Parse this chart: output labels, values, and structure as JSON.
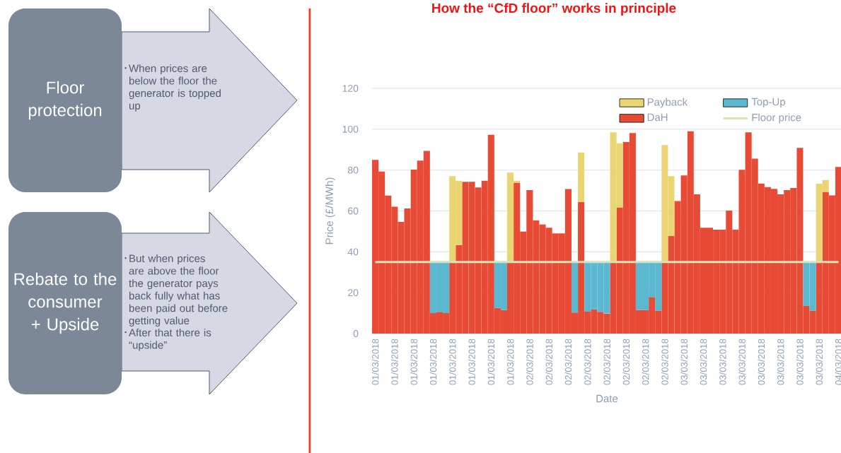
{
  "chart_data": [
    {
      "type": "other",
      "annotations": [
        "Floor protection",
        "When prices are below the floor the generator is topped up",
        "Rebate to the consumer + Upside",
        "But when prices are above the floor the generator pays back fully what has been paid out before getting value",
        "After that there is “upside”"
      ]
    },
    {
      "type": "bar",
      "stacked": true,
      "title": "How the “CfD floor” works in principle",
      "xlabel": "Date",
      "ylabel": "Price (£/MWh)",
      "categories": [
        "01/03/2018",
        null,
        null,
        "01/03/2018",
        null,
        null,
        "01/03/2018",
        null,
        null,
        "01/03/2018",
        null,
        null,
        "01/03/2018",
        null,
        null,
        "01/03/2018",
        null,
        null,
        "01/03/2018",
        null,
        null,
        "01/03/2018",
        null,
        null,
        "02/03/2018",
        null,
        null,
        "02/03/2018",
        null,
        null,
        "02/03/2018",
        null,
        null,
        "02/03/2018",
        null,
        null,
        "02/03/2018",
        null,
        null,
        "02/03/2018",
        null,
        null,
        "02/03/2018",
        null,
        null,
        "02/03/2018",
        null,
        null,
        "03/03/2018",
        null,
        null,
        "03/03/2018",
        null,
        null,
        "03/03/2018",
        null,
        null,
        "03/03/2018",
        null,
        null,
        "03/03/2018",
        null,
        null,
        "03/03/2018",
        null,
        null,
        "03/03/2018",
        null,
        null,
        "03/03/2018",
        null,
        null,
        "04/03/2018"
      ],
      "series": [
        {
          "name": "DaH",
          "color": "#e84b35",
          "values": [
            85.0,
            79.3,
            67.5,
            62.1,
            54.6,
            61.2,
            80.2,
            84.6,
            89.4,
            10.0,
            10.6,
            10.0,
            35,
            43.2,
            74.3,
            74.3,
            71.5,
            74.8,
            97.3,
            12.5,
            11.5,
            35,
            73.8,
            50.0,
            70.2,
            55.4,
            53.4,
            51.8,
            49.0,
            49.0,
            70.7,
            10.3,
            64.4,
            10.7,
            11.9,
            10.6,
            9.8,
            35,
            61.7,
            93.8,
            98.1,
            11.5,
            11.5,
            17.9,
            11.2,
            35,
            47.7,
            64.8,
            77.4,
            99.0,
            68.1,
            51.8,
            51.8,
            50.8,
            50.8,
            60.2,
            50.8,
            80.1,
            98.5,
            85.6,
            73.4,
            71.7,
            70.8,
            68.1,
            70.2,
            71.2,
            90.9,
            13.5,
            11.2,
            35,
            69.3,
            67.6,
            81.5
          ]
        },
        {
          "name": "Top-Up",
          "color": "#5bb8d1",
          "values": [
            null,
            null,
            null,
            null,
            null,
            null,
            null,
            null,
            null,
            25.0,
            24.4,
            25.0,
            null,
            null,
            null,
            null,
            null,
            null,
            null,
            22.5,
            23.5,
            null,
            null,
            null,
            null,
            null,
            null,
            null,
            null,
            null,
            null,
            24.7,
            null,
            24.3,
            23.1,
            24.4,
            25.2,
            null,
            null,
            null,
            null,
            23.5,
            23.5,
            17.1,
            23.8,
            null,
            null,
            null,
            null,
            null,
            null,
            null,
            null,
            null,
            null,
            null,
            null,
            null,
            null,
            null,
            null,
            null,
            null,
            null,
            null,
            null,
            null,
            21.5,
            23.8,
            null,
            null,
            null,
            null
          ]
        },
        {
          "name": "Payback",
          "color": "#ebd573",
          "values": [
            null,
            null,
            null,
            null,
            null,
            null,
            null,
            null,
            null,
            null,
            null,
            null,
            42.0,
            31.6,
            null,
            null,
            null,
            null,
            null,
            null,
            null,
            43.8,
            1.0,
            null,
            null,
            null,
            null,
            null,
            null,
            null,
            null,
            null,
            24.2,
            null,
            null,
            null,
            null,
            63.5,
            31.4,
            null,
            null,
            null,
            null,
            null,
            null,
            57.2,
            29.3,
            null,
            null,
            null,
            null,
            null,
            null,
            null,
            null,
            null,
            null,
            null,
            null,
            null,
            null,
            null,
            null,
            null,
            null,
            null,
            null,
            null,
            null,
            38.3,
            5.8,
            null,
            null
          ]
        },
        {
          "name": "Floor price",
          "type": "line",
          "color": "#d5e3b9",
          "values": [
            35,
            35,
            35,
            35,
            35,
            35,
            35,
            35,
            35,
            35,
            35,
            35,
            35,
            35,
            35,
            35,
            35,
            35,
            35,
            35,
            35,
            35,
            35,
            35,
            35,
            35,
            35,
            35,
            35,
            35,
            35,
            35,
            35,
            35,
            35,
            35,
            35,
            35,
            35,
            35,
            35,
            35,
            35,
            35,
            35,
            35,
            35,
            35,
            35,
            35,
            35,
            35,
            35,
            35,
            35,
            35,
            35,
            35,
            35,
            35,
            35,
            35,
            35,
            35,
            35,
            35,
            35,
            35,
            35,
            35,
            35,
            35,
            35
          ]
        }
      ],
      "ylim": [
        0,
        120
      ],
      "yticks": [
        0,
        20,
        40,
        60,
        80,
        100,
        120
      ],
      "grid": "y",
      "legend": "top right"
    }
  ]
}
